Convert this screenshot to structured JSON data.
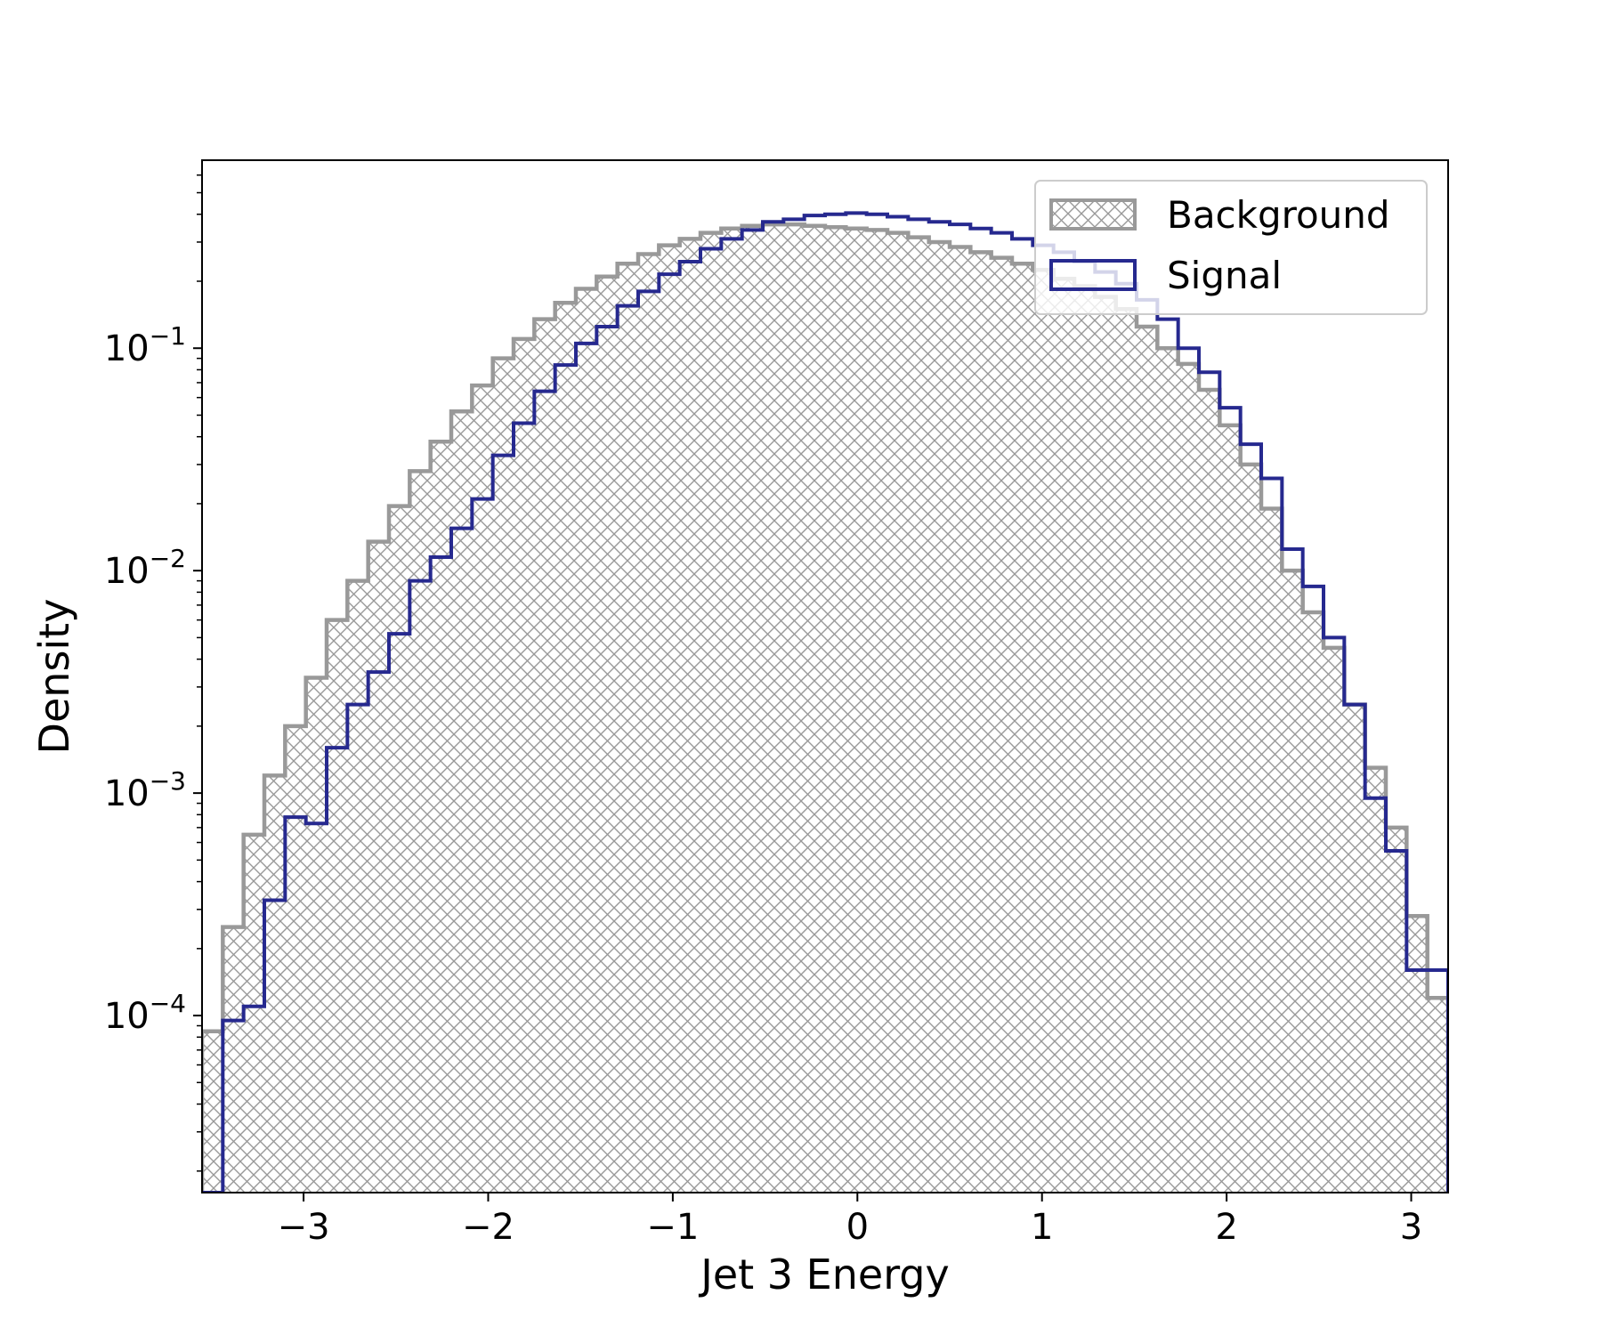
{
  "chart_data": {
    "type": "histogram",
    "xlabel": "Jet 3 Energy",
    "ylabel": "Density",
    "y_scale": "log",
    "xlim": [
      -3.55,
      3.2
    ],
    "ylim": [
      1.6e-05,
      0.7
    ],
    "x_ticks": [
      {
        "value": -3,
        "label": "−3"
      },
      {
        "value": -2,
        "label": "−2"
      },
      {
        "value": -1,
        "label": "−1"
      },
      {
        "value": 0,
        "label": "0"
      },
      {
        "value": 1,
        "label": "1"
      },
      {
        "value": 2,
        "label": "2"
      },
      {
        "value": 3,
        "label": "3"
      }
    ],
    "y_ticks": [
      {
        "value": 0.1,
        "base": "10",
        "exp": "−1"
      },
      {
        "value": 0.01,
        "base": "10",
        "exp": "−2"
      },
      {
        "value": 0.001,
        "base": "10",
        "exp": "−3"
      },
      {
        "value": 0.0001,
        "base": "10",
        "exp": "−4"
      }
    ],
    "bin_edges": [
      -3.55,
      -3.4375,
      -3.325,
      -3.2125,
      -3.1,
      -2.9875,
      -2.875,
      -2.7625,
      -2.65,
      -2.5375,
      -2.425,
      -2.3125,
      -2.2,
      -2.0875,
      -1.975,
      -1.8625,
      -1.75,
      -1.6375,
      -1.525,
      -1.4125,
      -1.3,
      -1.1875,
      -1.075,
      -0.9625,
      -0.85,
      -0.7375,
      -0.625,
      -0.5125,
      -0.4,
      -0.2875,
      -0.175,
      -0.0625,
      0.05,
      0.1625,
      0.275,
      0.3875,
      0.5,
      0.6125,
      0.725,
      0.8375,
      0.95,
      1.0625,
      1.175,
      1.2875,
      1.4,
      1.5125,
      1.625,
      1.7375,
      1.85,
      1.9625,
      2.075,
      2.1875,
      2.3,
      2.4125,
      2.525,
      2.6375,
      2.75,
      2.8625,
      2.975,
      3.0875,
      3.2
    ],
    "series": [
      {
        "name": "Background",
        "style": "hatched-step",
        "color": "#999999",
        "values": [
          8.5e-05,
          0.00025,
          0.00065,
          0.0012,
          0.002,
          0.0033,
          0.006,
          0.009,
          0.0135,
          0.0195,
          0.028,
          0.038,
          0.052,
          0.068,
          0.09,
          0.11,
          0.135,
          0.16,
          0.185,
          0.21,
          0.24,
          0.265,
          0.29,
          0.31,
          0.33,
          0.345,
          0.355,
          0.36,
          0.36,
          0.355,
          0.35,
          0.345,
          0.34,
          0.33,
          0.315,
          0.3,
          0.285,
          0.27,
          0.255,
          0.24,
          0.225,
          0.205,
          0.19,
          0.17,
          0.15,
          0.125,
          0.1,
          0.085,
          0.065,
          0.045,
          0.03,
          0.019,
          0.01,
          0.0065,
          0.0045,
          0.0025,
          0.0013,
          0.0007,
          0.00028,
          0.00012
        ]
      },
      {
        "name": "Signal",
        "style": "step",
        "color": "#26298f",
        "values": [
          1.6e-05,
          9.5e-05,
          0.00011,
          0.00033,
          0.00078,
          0.00073,
          0.0016,
          0.0025,
          0.0035,
          0.0052,
          0.009,
          0.0115,
          0.0155,
          0.021,
          0.033,
          0.046,
          0.064,
          0.084,
          0.105,
          0.125,
          0.155,
          0.18,
          0.215,
          0.245,
          0.28,
          0.31,
          0.34,
          0.37,
          0.38,
          0.395,
          0.4,
          0.405,
          0.4,
          0.39,
          0.38,
          0.37,
          0.36,
          0.345,
          0.33,
          0.31,
          0.29,
          0.27,
          0.245,
          0.22,
          0.195,
          0.165,
          0.135,
          0.1,
          0.078,
          0.054,
          0.037,
          0.026,
          0.0125,
          0.0085,
          0.005,
          0.0025,
          0.00095,
          0.00055,
          0.00016,
          0.00016
        ]
      }
    ],
    "legend": {
      "position": "top-right",
      "entries": [
        "Background",
        "Signal"
      ]
    }
  }
}
